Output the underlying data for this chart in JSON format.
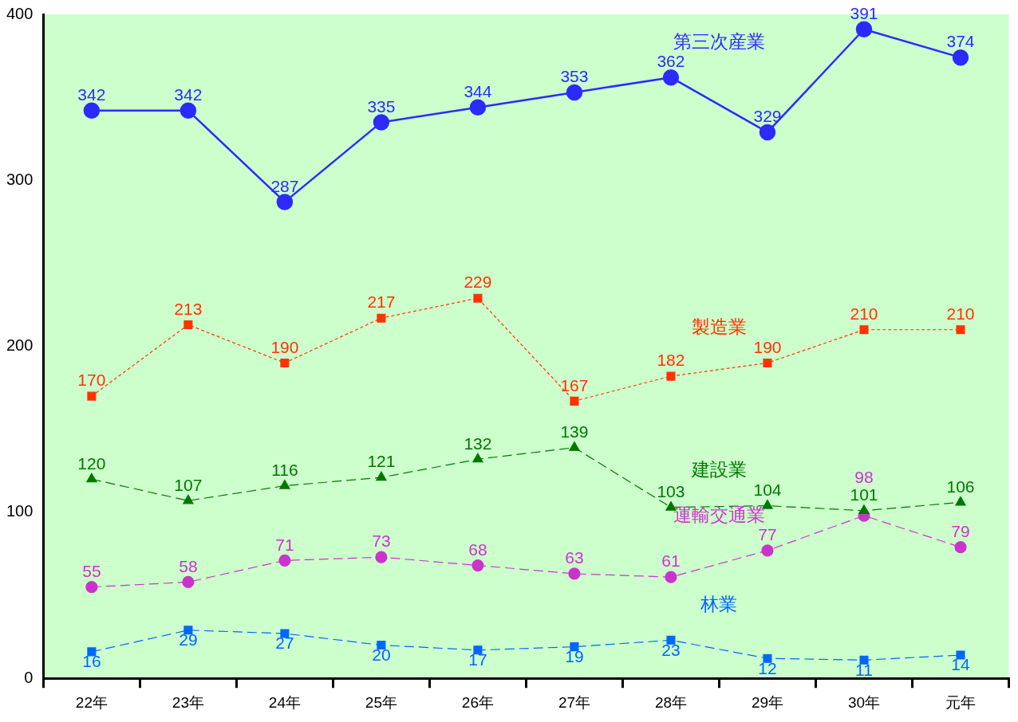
{
  "chart_data": {
    "type": "line",
    "categories": [
      "22年",
      "23年",
      "24年",
      "25年",
      "26年",
      "27年",
      "28年",
      "29年",
      "30年",
      "元年"
    ],
    "ylim": [
      0,
      400
    ],
    "yticks": [
      0,
      100,
      200,
      300,
      400
    ],
    "grid": false,
    "legend": false,
    "data_labels": true,
    "series": [
      {
        "name": "第三次産業",
        "color": "#2b2bff",
        "marker": "circle",
        "line_style": "solid",
        "values": [
          342,
          342,
          287,
          335,
          344,
          353,
          362,
          329,
          391,
          374
        ]
      },
      {
        "name": "製造業",
        "color": "#ff3300",
        "marker": "square",
        "line_style": "dotted",
        "values": [
          170,
          213,
          190,
          217,
          229,
          167,
          182,
          190,
          210,
          210
        ]
      },
      {
        "name": "建設業",
        "color": "#007700",
        "marker": "triangle",
        "line_style": "dashed",
        "values": [
          120,
          107,
          116,
          121,
          132,
          139,
          103,
          104,
          101,
          106
        ]
      },
      {
        "name": "運輸交通業",
        "color": "#cc33cc",
        "marker": "circle",
        "line_style": "dashed",
        "values": [
          55,
          58,
          71,
          73,
          68,
          63,
          61,
          77,
          98,
          79
        ]
      },
      {
        "name": "林業",
        "color": "#0066ff",
        "marker": "square",
        "line_style": "dashed",
        "values": [
          16,
          29,
          27,
          20,
          17,
          19,
          23,
          12,
          11,
          14
        ]
      }
    ]
  }
}
